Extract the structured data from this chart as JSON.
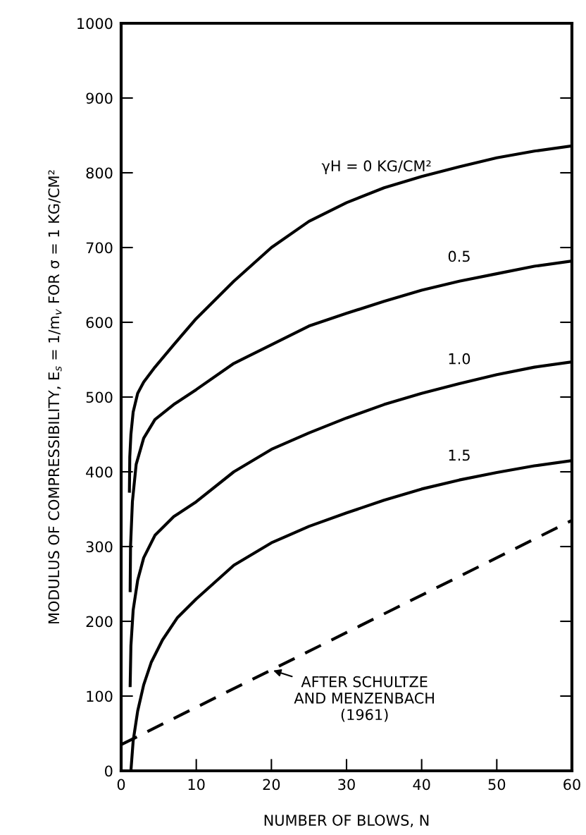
{
  "chart_data": {
    "type": "line",
    "xlabel": "NUMBER OF BLOWS, N",
    "ylabel": "MODULUS OF COMPRESSIBILITY, E$_{s}$ = 1/m$_{v}$ FOR σ = 1 KG/CM²",
    "xlim": [
      0,
      60
    ],
    "xticks": [
      0,
      10,
      20,
      30,
      40,
      50,
      60
    ],
    "ylim": [
      0,
      1000
    ],
    "yticks": [
      0,
      100,
      200,
      300,
      400,
      500,
      600,
      700,
      800,
      900,
      1000
    ],
    "grid": false,
    "legend": false,
    "series": [
      {
        "name": "γH = 0 KG/CM²",
        "color": "#000000",
        "line_style": "solid",
        "x": [
          1.1,
          1.15,
          1.3,
          1.6,
          2.2,
          3,
          4.5,
          7,
          10,
          15,
          20,
          25,
          30,
          35,
          40,
          45,
          50,
          55,
          60
        ],
        "values": [
          374,
          420,
          450,
          480,
          505,
          520,
          540,
          570,
          605,
          655,
          700,
          735,
          760,
          780,
          795,
          808,
          820,
          829,
          836
        ]
      },
      {
        "name": "0.5",
        "color": "#000000",
        "line_style": "solid",
        "x": [
          1.2,
          1.25,
          1.5,
          2,
          3,
          4.5,
          7,
          10,
          15,
          20,
          25,
          30,
          35,
          40,
          45,
          50,
          55,
          60
        ],
        "values": [
          241,
          300,
          360,
          410,
          445,
          470,
          490,
          510,
          545,
          570,
          595,
          612,
          628,
          643,
          655,
          665,
          675,
          682
        ]
      },
      {
        "name": "1.0",
        "color": "#000000",
        "line_style": "solid",
        "x": [
          1.2,
          1.3,
          1.6,
          2.2,
          3,
          4.5,
          7,
          10,
          15,
          20,
          25,
          30,
          35,
          40,
          45,
          50,
          55,
          60
        ],
        "values": [
          114,
          167,
          215,
          255,
          285,
          315,
          340,
          360,
          400,
          430,
          452,
          472,
          490,
          505,
          518,
          530,
          540,
          547
        ]
      },
      {
        "name": "1.5",
        "color": "#000000",
        "line_style": "solid",
        "x": [
          1.3,
          1.6,
          2.2,
          3,
          4,
          5.5,
          7.5,
          10,
          15,
          20,
          25,
          30,
          35,
          40,
          45,
          50,
          55,
          60
        ],
        "values": [
          0,
          40,
          80,
          115,
          145,
          175,
          205,
          230,
          275,
          305,
          327,
          345,
          362,
          377,
          389,
          399,
          408,
          415
        ]
      },
      {
        "color": "#000000",
        "line_style": "dashed",
        "x": [
          0,
          60
        ],
        "values": [
          35,
          335
        ]
      }
    ],
    "annotations": [
      {
        "text": "AFTER SCHULTZE\nAND MENZENBACH\n(1961)",
        "x": 20,
        "y": 135
      }
    ]
  }
}
